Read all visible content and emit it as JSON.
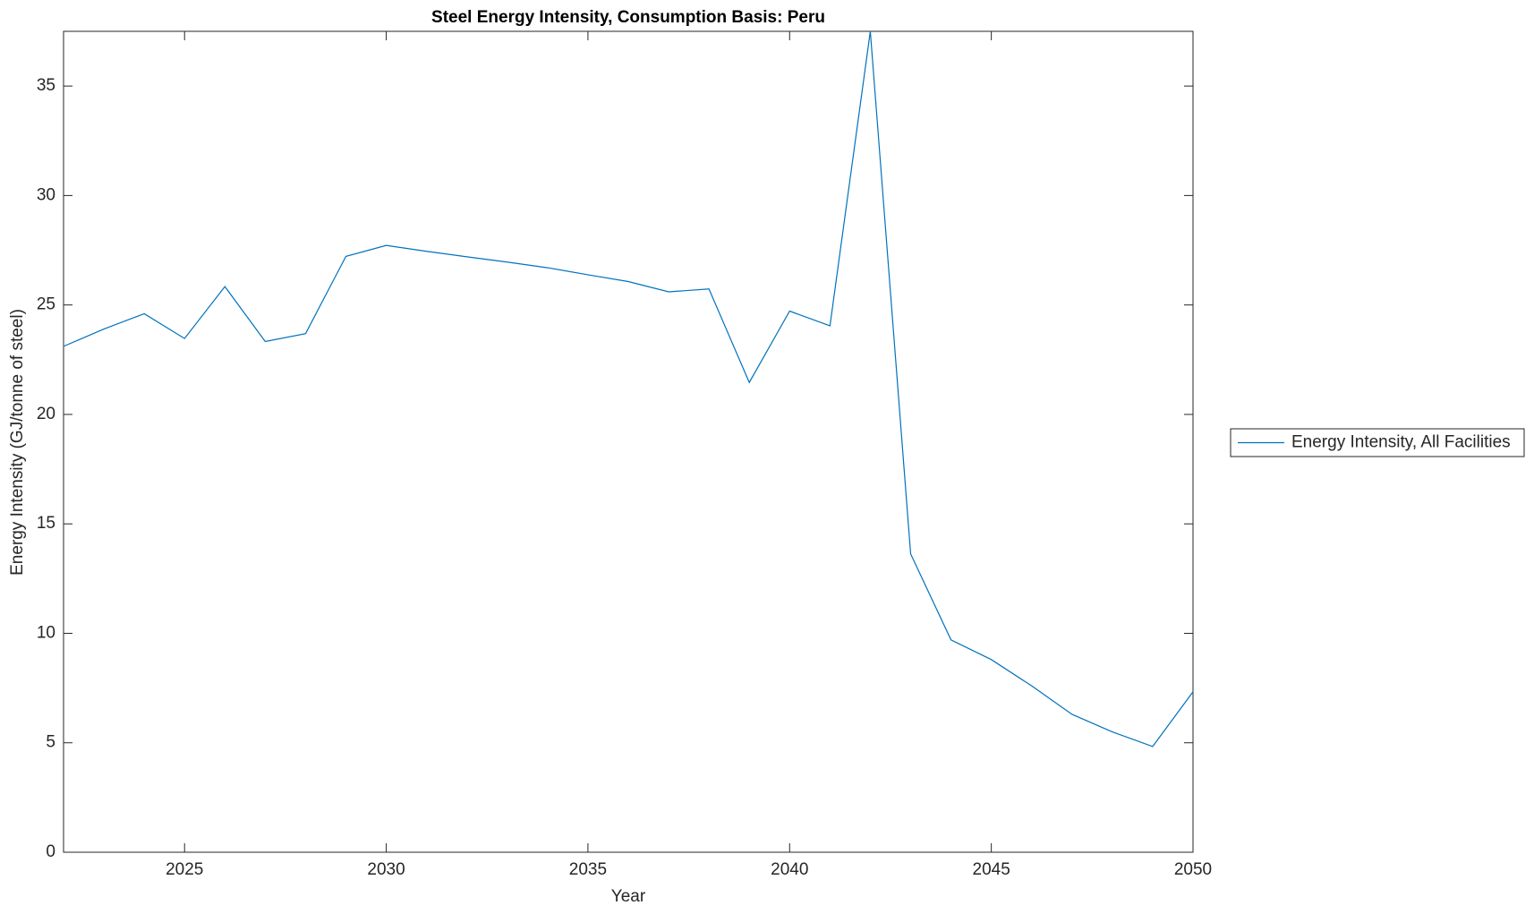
{
  "chart_data": {
    "type": "line",
    "title": "Steel Energy Intensity, Consumption Basis: Peru",
    "x_label": "Year",
    "y_label": "Energy Intensity (GJ/tonne of steel)",
    "x": [
      2022,
      2023,
      2024,
      2025,
      2026,
      2027,
      2028,
      2029,
      2030,
      2031,
      2032,
      2033,
      2034,
      2035,
      2036,
      2037,
      2038,
      2039,
      2040,
      2041,
      2042,
      2043,
      2044,
      2045,
      2046,
      2047,
      2048,
      2049,
      2050
    ],
    "series": [
      {
        "name": "Energy Intensity, All Facilities",
        "color": "#0072bd",
        "values": [
          23.11,
          23.9,
          24.6,
          23.47,
          25.84,
          23.33,
          23.69,
          27.22,
          27.72,
          27.45,
          27.2,
          26.96,
          26.7,
          26.38,
          26.07,
          25.6,
          25.73,
          21.46,
          24.72,
          24.05,
          37.5,
          13.63,
          9.7,
          8.8,
          7.6,
          6.3,
          5.5,
          4.83,
          7.33
        ]
      }
    ],
    "xlim": [
      2022,
      2050
    ],
    "xticks": [
      2025,
      2030,
      2035,
      2040,
      2045,
      2050
    ],
    "ylim": [
      0,
      37.5
    ],
    "yticks": [
      0,
      5,
      10,
      15,
      20,
      25,
      30,
      35
    ],
    "grid": false,
    "legend": "outside-right"
  }
}
